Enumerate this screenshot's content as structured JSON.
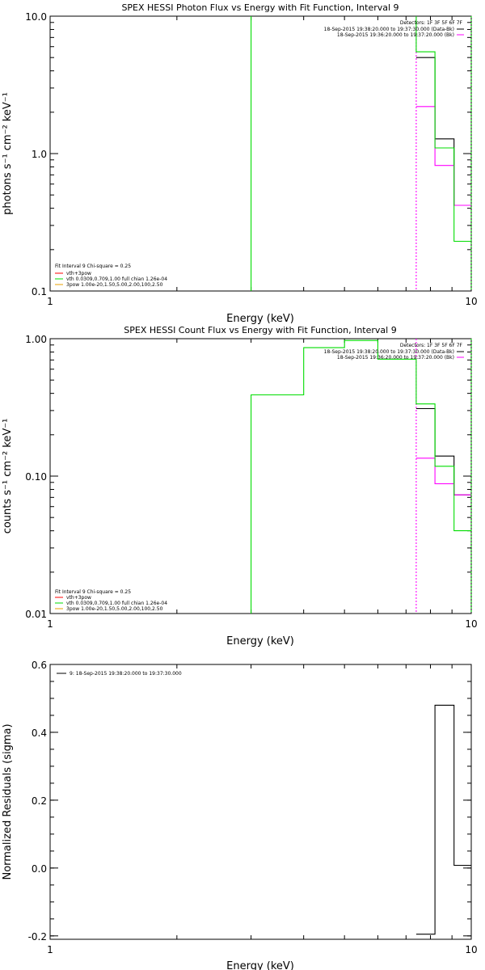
{
  "colors": {
    "data": "#000000",
    "bk": "#ff00ff",
    "fit": "#00dd00",
    "red": "#ff0000",
    "gold": "#e8a000"
  },
  "panels": [
    {
      "chart_data": {
        "type": "line",
        "title": "SPEX HESSI Photon Flux vs Energy with Fit Function, Interval 9",
        "xlabel": "Energy (keV)",
        "ylabel": "photons s⁻¹ cm⁻² keV⁻¹",
        "xscale": "log",
        "yscale": "log",
        "xlim": [
          1,
          10
        ],
        "ylim": [
          0.1,
          10
        ],
        "xticks": [
          {
            "v": 1,
            "t": "1"
          },
          {
            "v": 10,
            "t": "10"
          }
        ],
        "yticks": [
          {
            "v": 0.1,
            "t": "0.1"
          },
          {
            "v": 1,
            "t": "1.0"
          },
          {
            "v": 10,
            "t": "10.0"
          }
        ],
        "legend_right": [
          "Detectors: 1F 3F 5F 6F 7F",
          "18-Sep-2015 19:38:20.000 to 19:37:30.000 (Data-Bk)",
          "18-Sep-2015 19:36:20.000 to 19:37:20.000 (Bk)"
        ],
        "legend_left": [
          "Fit Interval 9   Chi-square = 0.25",
          "vth+3pow",
          "vth 0.0309,0.709,1.00  full chian 1.26e-04",
          "3pow 1.00e-20,1.50,5.00,2.00,100,2.50"
        ],
        "series": [
          {
            "name": "Data-Bk",
            "color": "#000000",
            "dash": false,
            "x": [
              7.4,
              8.2,
              8.2,
              9.1,
              9.1,
              10
            ],
            "y": [
              5.0,
              5.0,
              1.28,
              1.28,
              0.42,
              0.42
            ]
          },
          {
            "color": "#ff00ff",
            "dash": true,
            "x": [
              7.4,
              7.4
            ]
          },
          {
            "name": "Bk",
            "color": "#ff00ff",
            "dash": false,
            "x": [
              7.4,
              8.2,
              8.2,
              9.1,
              9.1,
              10
            ],
            "y": [
              2.2,
              2.2,
              0.82,
              0.82,
              0.42,
              0.42
            ]
          },
          {
            "color": "#00dd00",
            "dash": false,
            "x": [
              3.0,
              3.0
            ]
          },
          {
            "color": "#00dd00",
            "dash": false,
            "x": [
              7.4,
              7.4,
              8.2,
              8.2,
              9.1,
              9.1,
              10
            ],
            "y": [
              10,
              5.5,
              5.5,
              1.1,
              1.1,
              0.23,
              0.23
            ]
          },
          {
            "color": "#00dd00",
            "dash": true,
            "x": [
              10,
              10
            ]
          }
        ]
      }
    },
    {
      "chart_data": {
        "type": "line",
        "title": "SPEX HESSI Count Flux vs Energy with Fit Function, Interval 9",
        "xlabel": "Energy (keV)",
        "ylabel": "counts s⁻¹ cm⁻² keV⁻¹",
        "xscale": "log",
        "yscale": "log",
        "xlim": [
          1,
          10
        ],
        "ylim": [
          0.01,
          1.0
        ],
        "xticks": [
          {
            "v": 1,
            "t": "1"
          },
          {
            "v": 10,
            "t": "10"
          }
        ],
        "yticks": [
          {
            "v": 0.01,
            "t": "0.01"
          },
          {
            "v": 0.1,
            "t": "0.10"
          },
          {
            "v": 1,
            "t": "1.00"
          }
        ],
        "legend_right": [
          "Detectors: 1F 3F 5F 6F 7F",
          "18-Sep-2015 19:38:20.000 to 19:37:30.000 (Data-Bk)",
          "18-Sep-2015 19:36:20.000 to 19:37:20.000 (Bk)"
        ],
        "legend_left": [
          "Fit Interval 9   Chi-square = 0.25",
          "vth+3pow",
          "vth 0.0309,0.709,1.00  full chian 1.26e-04",
          "3pow 1.00e-20,1.50,5.00,2.00,100,2.50"
        ],
        "series": [
          {
            "name": "Data-Bk",
            "color": "#000000",
            "dash": false,
            "x": [
              7.4,
              8.2,
              8.2,
              9.1,
              9.1,
              10
            ],
            "y": [
              0.31,
              0.31,
              0.14,
              0.14,
              0.073,
              0.073
            ]
          },
          {
            "color": "#ff00ff",
            "dash": true,
            "x": [
              7.4,
              7.4
            ]
          },
          {
            "name": "Bk",
            "color": "#ff00ff",
            "dash": false,
            "x": [
              7.4,
              8.2,
              8.2,
              9.1,
              9.1,
              10
            ],
            "y": [
              0.135,
              0.135,
              0.088,
              0.088,
              0.073,
              0.073
            ]
          },
          {
            "color": "#00dd00",
            "dash": false,
            "x": [
              3.0,
              3.0,
              4.0,
              4.0,
              5.0,
              5.0,
              6.0,
              6.0,
              7.4,
              7.4,
              8.2,
              8.2,
              9.1,
              9.1,
              10
            ],
            "y": [
              0.01,
              0.39,
              0.39,
              0.86,
              0.86,
              0.97,
              0.97,
              0.71,
              0.71,
              0.335,
              0.335,
              0.118,
              0.118,
              0.04,
              0.04
            ]
          },
          {
            "color": "#00dd00",
            "dash": true,
            "x": [
              10,
              10
            ]
          }
        ]
      }
    },
    {
      "chart_data": {
        "type": "line",
        "title": "",
        "xlabel": "Energy (keV)",
        "ylabel": "Normalized Residuals (sigma)",
        "xscale": "log",
        "yscale": "linear",
        "xlim": [
          1,
          10
        ],
        "ylim": [
          -0.21,
          0.6
        ],
        "xticks": [
          {
            "v": 1,
            "t": "1"
          },
          {
            "v": 10,
            "t": "10"
          }
        ],
        "yticks": [
          {
            "v": -0.2,
            "t": "-0.2"
          },
          {
            "v": 0.0,
            "t": "0.0"
          },
          {
            "v": 0.2,
            "t": "0.2"
          },
          {
            "v": 0.4,
            "t": "0.4"
          },
          {
            "v": 0.6,
            "t": "0.6"
          }
        ],
        "legend_left": [
          "9: 18-Sep-2015 19:38:20.000 to 19:37:30.000"
        ],
        "series": [
          {
            "name": "9: 18-Sep-2015 19:38:20.000 to 19:37:30.000",
            "color": "#000000",
            "dash": false,
            "x": [
              7.4,
              8.2,
              8.2,
              9.1,
              9.1,
              10
            ],
            "y": [
              -0.195,
              -0.195,
              0.48,
              0.48,
              0.008,
              0.008
            ]
          }
        ]
      }
    }
  ]
}
